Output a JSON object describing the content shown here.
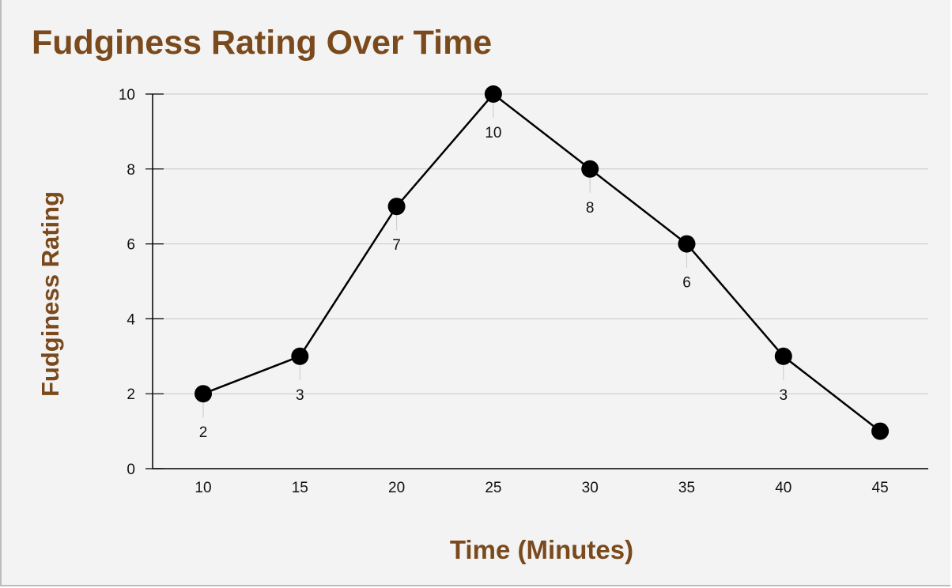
{
  "chart_data": {
    "type": "line",
    "title": "Fudginess Rating Over Time",
    "xlabel": "Time (Minutes)",
    "ylabel": "Fudginess Rating",
    "x": [
      10,
      15,
      20,
      25,
      30,
      35,
      40,
      45
    ],
    "y": [
      2,
      3,
      7,
      10,
      8,
      6,
      3,
      1
    ],
    "data_labels": [
      "2",
      "3",
      "7",
      "10",
      "8",
      "6",
      "3",
      ""
    ],
    "x_ticks": [
      "10",
      "15",
      "20",
      "25",
      "30",
      "35",
      "40",
      "45"
    ],
    "y_ticks": [
      0,
      2,
      4,
      6,
      8,
      10
    ],
    "ylim": [
      0,
      10
    ],
    "grid": "horizontal",
    "legend": "none"
  },
  "colors": {
    "title": "#7a4a1d",
    "line": "#000000",
    "grid": "#c8c8c8",
    "background": "#f3f3f3"
  }
}
